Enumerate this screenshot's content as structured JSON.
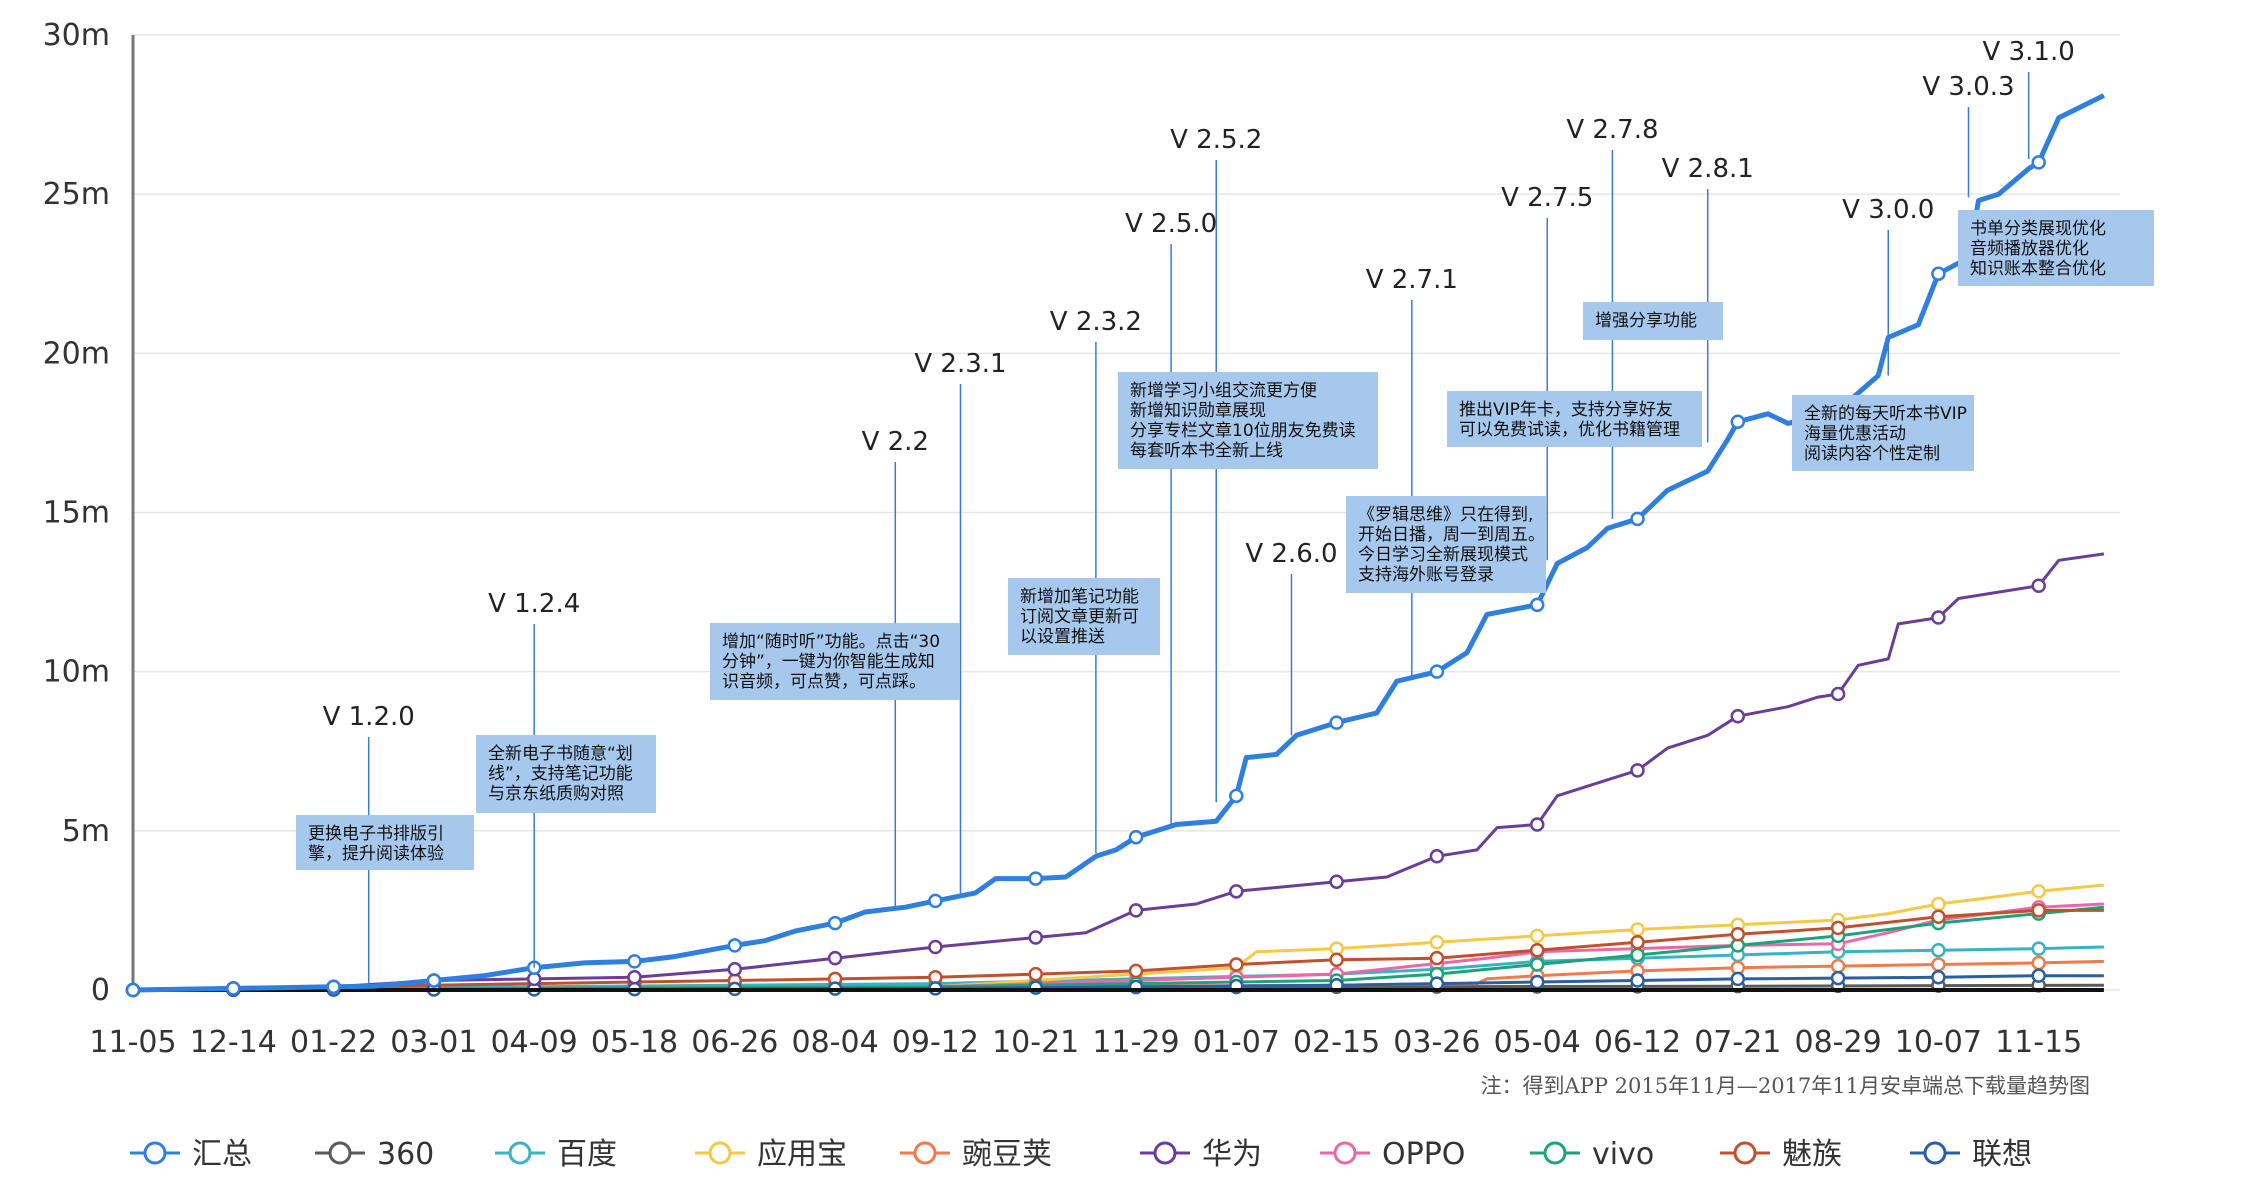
{
  "chart_data": {
    "type": "line",
    "ylim": [
      0,
      30
    ],
    "yticks": [
      {
        "value": 0,
        "label": "0"
      },
      {
        "value": 5,
        "label": "5m"
      },
      {
        "value": 10,
        "label": "10m"
      },
      {
        "value": 15,
        "label": "15m"
      },
      {
        "value": 20,
        "label": "20m"
      },
      {
        "value": 25,
        "label": "25m"
      },
      {
        "value": 30,
        "label": "30m"
      }
    ],
    "categories": [
      "11-05",
      "12-14",
      "01-22",
      "03-01",
      "04-09",
      "05-18",
      "06-26",
      "08-04",
      "09-12",
      "10-21",
      "11-29",
      "01-07",
      "02-15",
      "03-26",
      "05-04",
      "06-12",
      "07-21",
      "08-29",
      "10-07",
      "11-15"
    ],
    "x_end": 19.65,
    "series": [
      {
        "name": "汇总",
        "color": "#2f7fe0",
        "points": [
          [
            0,
            0
          ],
          [
            1,
            0.05
          ],
          [
            2,
            0.1
          ],
          [
            2.4,
            0.12
          ],
          [
            3,
            0.3
          ],
          [
            3.5,
            0.45
          ],
          [
            4,
            0.7
          ],
          [
            4.5,
            0.85
          ],
          [
            5,
            0.9
          ],
          [
            5.4,
            1.05
          ],
          [
            6,
            1.4
          ],
          [
            6.3,
            1.55
          ],
          [
            6.6,
            1.85
          ],
          [
            7,
            2.1
          ],
          [
            7.3,
            2.45
          ],
          [
            7.7,
            2.6
          ],
          [
            8,
            2.8
          ],
          [
            8.4,
            3.05
          ],
          [
            8.6,
            3.5
          ],
          [
            9,
            3.5
          ],
          [
            9.3,
            3.55
          ],
          [
            9.6,
            4.2
          ],
          [
            9.8,
            4.4
          ],
          [
            10,
            4.8
          ],
          [
            10.4,
            5.2
          ],
          [
            10.8,
            5.3
          ],
          [
            11,
            6.1
          ],
          [
            11.1,
            7.3
          ],
          [
            11.4,
            7.4
          ],
          [
            11.6,
            8
          ],
          [
            12,
            8.4
          ],
          [
            12.4,
            8.7
          ],
          [
            12.6,
            9.7
          ],
          [
            13,
            10
          ],
          [
            13.3,
            10.6
          ],
          [
            13.5,
            11.8
          ],
          [
            14,
            12.1
          ],
          [
            14.2,
            13.4
          ],
          [
            14.5,
            13.9
          ],
          [
            14.7,
            14.5
          ],
          [
            15,
            14.8
          ],
          [
            15.3,
            15.7
          ],
          [
            15.7,
            16.3
          ],
          [
            15.9,
            17.3
          ],
          [
            16,
            17.85
          ],
          [
            16.3,
            18.1
          ],
          [
            16.5,
            17.8
          ],
          [
            17,
            18.2
          ],
          [
            17.4,
            19.3
          ],
          [
            17.5,
            20.5
          ],
          [
            17.8,
            20.9
          ],
          [
            18,
            22.5
          ],
          [
            18.3,
            23
          ],
          [
            18.4,
            24.8
          ],
          [
            18.6,
            25
          ],
          [
            18.9,
            25.8
          ],
          [
            19,
            26
          ],
          [
            19.2,
            27.4
          ],
          [
            19.65,
            28.1
          ]
        ]
      },
      {
        "name": "360",
        "color": "#5a5a5a",
        "points": [
          [
            0,
            0
          ],
          [
            4,
            0.05
          ],
          [
            8,
            0.08
          ],
          [
            12,
            0.1
          ],
          [
            16,
            0.12
          ],
          [
            19.65,
            0.15
          ]
        ]
      },
      {
        "name": "百度",
        "color": "#36b3c4",
        "points": [
          [
            0,
            0
          ],
          [
            4,
            0.1
          ],
          [
            8,
            0.2
          ],
          [
            12,
            0.5
          ],
          [
            13,
            0.65
          ],
          [
            14,
            0.9
          ],
          [
            15,
            1
          ],
          [
            16,
            1.1
          ],
          [
            17,
            1.2
          ],
          [
            18,
            1.25
          ],
          [
            19,
            1.3
          ],
          [
            19.65,
            1.35
          ]
        ]
      },
      {
        "name": "应用宝",
        "color": "#f5c945",
        "points": [
          [
            0,
            0
          ],
          [
            4,
            0.05
          ],
          [
            8,
            0.1
          ],
          [
            11,
            0.7
          ],
          [
            11.2,
            1.2
          ],
          [
            12,
            1.3
          ],
          [
            13,
            1.5
          ],
          [
            14,
            1.7
          ],
          [
            15,
            1.9
          ],
          [
            16,
            2.05
          ],
          [
            17,
            2.2
          ],
          [
            17.5,
            2.4
          ],
          [
            18,
            2.7
          ],
          [
            18.5,
            2.9
          ],
          [
            19,
            3.1
          ],
          [
            19.65,
            3.3
          ]
        ]
      },
      {
        "name": "豌豆荚",
        "color": "#f07a4a",
        "points": [
          [
            0,
            0
          ],
          [
            4,
            0.05
          ],
          [
            8,
            0.1
          ],
          [
            12,
            0.15
          ],
          [
            13.4,
            0.2
          ],
          [
            13.5,
            0.35
          ],
          [
            14,
            0.45
          ],
          [
            15,
            0.6
          ],
          [
            16,
            0.7
          ],
          [
            17,
            0.75
          ],
          [
            18,
            0.8
          ],
          [
            19,
            0.85
          ],
          [
            19.65,
            0.9
          ]
        ]
      },
      {
        "name": "华为",
        "color": "#6a3d9a",
        "points": [
          [
            0,
            0
          ],
          [
            1,
            0.05
          ],
          [
            2,
            0.1
          ],
          [
            3,
            0.3
          ],
          [
            4,
            0.35
          ],
          [
            5,
            0.4
          ],
          [
            6,
            0.65
          ],
          [
            7,
            1
          ],
          [
            8,
            1.35
          ],
          [
            9,
            1.65
          ],
          [
            9.5,
            1.8
          ],
          [
            10,
            2.5
          ],
          [
            10.6,
            2.7
          ],
          [
            11,
            3.1
          ],
          [
            12,
            3.4
          ],
          [
            12.5,
            3.55
          ],
          [
            13,
            4.2
          ],
          [
            13.4,
            4.4
          ],
          [
            13.6,
            5.1
          ],
          [
            14,
            5.2
          ],
          [
            14.2,
            6.1
          ],
          [
            14.8,
            6.7
          ],
          [
            15,
            6.9
          ],
          [
            15.3,
            7.6
          ],
          [
            15.7,
            8
          ],
          [
            16,
            8.6
          ],
          [
            16.5,
            8.9
          ],
          [
            16.8,
            9.2
          ],
          [
            17,
            9.3
          ],
          [
            17.2,
            10.2
          ],
          [
            17.5,
            10.4
          ],
          [
            17.6,
            11.5
          ],
          [
            18,
            11.7
          ],
          [
            18.2,
            12.3
          ],
          [
            19,
            12.7
          ],
          [
            19.2,
            13.5
          ],
          [
            19.65,
            13.7
          ]
        ]
      },
      {
        "name": "OPPO",
        "color": "#e868a8",
        "points": [
          [
            0,
            0
          ],
          [
            4,
            0.05
          ],
          [
            8,
            0.1
          ],
          [
            12,
            0.5
          ],
          [
            13.5,
            1
          ],
          [
            14,
            1.2
          ],
          [
            15,
            1.3
          ],
          [
            16,
            1.4
          ],
          [
            17,
            1.45
          ],
          [
            17.5,
            1.8
          ],
          [
            18,
            2.2
          ],
          [
            19,
            2.6
          ],
          [
            19.65,
            2.7
          ]
        ]
      },
      {
        "name": "vivo",
        "color": "#1fa27b",
        "points": [
          [
            0,
            0
          ],
          [
            4,
            0.05
          ],
          [
            8,
            0.1
          ],
          [
            12,
            0.3
          ],
          [
            13,
            0.5
          ],
          [
            14,
            0.8
          ],
          [
            15,
            1.1
          ],
          [
            16,
            1.4
          ],
          [
            17,
            1.7
          ],
          [
            18,
            2.1
          ],
          [
            19,
            2.4
          ],
          [
            19.65,
            2.6
          ]
        ]
      },
      {
        "name": "魅族",
        "color": "#c0502e",
        "points": [
          [
            0,
            0
          ],
          [
            2,
            0.1
          ],
          [
            4,
            0.2
          ],
          [
            6,
            0.3
          ],
          [
            8,
            0.4
          ],
          [
            10,
            0.6
          ],
          [
            11,
            0.8
          ],
          [
            12,
            0.95
          ],
          [
            13,
            1
          ],
          [
            14,
            1.25
          ],
          [
            15,
            1.5
          ],
          [
            16,
            1.75
          ],
          [
            17,
            1.95
          ],
          [
            18,
            2.3
          ],
          [
            19,
            2.5
          ],
          [
            19.65,
            2.5
          ]
        ]
      },
      {
        "name": "联想",
        "color": "#2a5fa5",
        "points": [
          [
            0,
            0
          ],
          [
            4,
            0.02
          ],
          [
            8,
            0.05
          ],
          [
            12,
            0.15
          ],
          [
            14,
            0.25
          ],
          [
            16,
            0.35
          ],
          [
            18,
            0.4
          ],
          [
            19,
            0.45
          ],
          [
            19.65,
            0.45
          ]
        ]
      },
      {
        "name": "",
        "color": "#111111",
        "points": [
          [
            0,
            0
          ],
          [
            19.65,
            0
          ]
        ]
      }
    ],
    "versions": [
      {
        "label": "V 1.2.0",
        "x": 2.35,
        "y": 0.1
      },
      {
        "label": "V 1.2.4",
        "x": 4.0,
        "y": 0.7
      },
      {
        "label": "V 2.2",
        "x": 7.6,
        "y": 2.6
      },
      {
        "label": "V 2.3.1",
        "x": 8.25,
        "y": 3.0
      },
      {
        "label": "V 2.3.2",
        "x": 9.6,
        "y": 4.3
      },
      {
        "label": "V 2.5.0",
        "x": 10.35,
        "y": 5.2
      },
      {
        "label": "V 2.5.2",
        "x": 10.8,
        "y": 5.9
      },
      {
        "label": "V 2.6.0",
        "x": 11.55,
        "y": 8.0
      },
      {
        "label": "V 2.7.1",
        "x": 12.75,
        "y": 9.8
      },
      {
        "label": "V 2.7.5",
        "x": 14.1,
        "y": 13.5
      },
      {
        "label": "V 2.7.8",
        "x": 14.75,
        "y": 14.8
      },
      {
        "label": "V 2.8.1",
        "x": 15.7,
        "y": 17.2
      },
      {
        "label": "V 3.0.0",
        "x": 17.5,
        "y": 19.3
      },
      {
        "label": "V 3.0.3",
        "x": 18.3,
        "y": 24.9
      },
      {
        "label": "V 3.1.0",
        "x": 18.9,
        "y": 26.1
      }
    ],
    "notes": [
      {
        "lines": [
          "更换电子书排版引",
          "擎，提升阅读体验"
        ]
      },
      {
        "lines": [
          "全新电子书随意“划",
          "线”，支持笔记功能",
          "与京东纸质购对照"
        ]
      },
      {
        "lines": [
          "增加“随时听”功能。点击“30",
          "分钟”，一键为你智能生成知",
          "识音频，可点赞，可点踩。"
        ]
      },
      {
        "lines": [
          "新增加笔记功能",
          "订阅文章更新可",
          "以设置推送"
        ]
      },
      {
        "lines": [
          "新增学习小组交流更方便",
          "新增知识勋章展现",
          "分享专栏文章10位朋友免费读",
          "每套听本书全新上线"
        ]
      },
      {
        "lines": [
          "《罗辑思维》只在得到,",
          "开始日播，周一到周五。",
          "今日学习全新展现模式",
          "支持海外账号登录"
        ]
      },
      {
        "lines": [
          "推出VIP年卡，支持分享好友",
          "可以免费试读，优化书籍管理"
        ]
      },
      {
        "lines": [
          "增强分享功能"
        ]
      },
      {
        "lines": [
          "全新的每天听本书VIP",
          "海量优惠活动",
          "阅读内容个性定制"
        ]
      },
      {
        "lines": [
          "书单分类展现优化",
          "音频播放器优化",
          "知识账本整合优化"
        ]
      }
    ],
    "footnote": "注：得到APP 2015年11月—2017年11月安卓端总下载量趋势图",
    "grid": true,
    "legend_position": "bottom",
    "note_box_color": "#a6c8ec"
  }
}
